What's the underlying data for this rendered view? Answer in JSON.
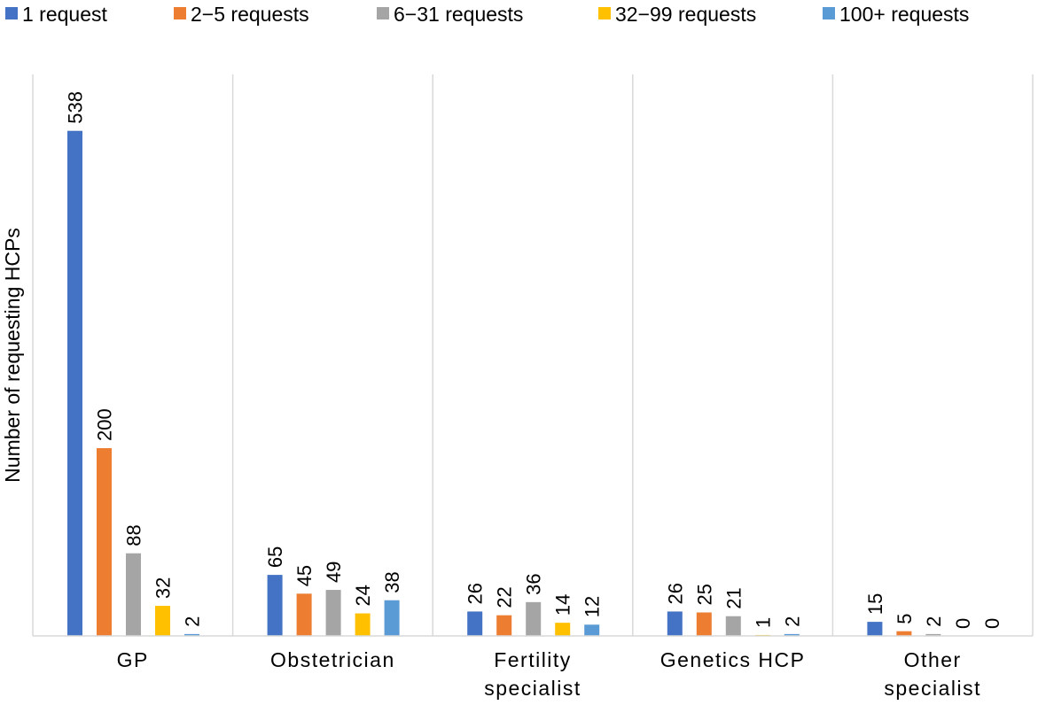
{
  "chart_data": {
    "type": "bar",
    "title": "",
    "xlabel": "",
    "ylabel": "Number of requesting HCPs",
    "categories": [
      [
        "GP"
      ],
      [
        "Obstetrician"
      ],
      [
        "Fertility",
        "specialist"
      ],
      [
        "Genetics HCP"
      ],
      [
        "Other",
        "specialist"
      ]
    ],
    "series": [
      {
        "name": "1 request",
        "color": "#4472C4",
        "values": [
          538,
          65,
          26,
          26,
          15
        ]
      },
      {
        "name": "2−5 requests",
        "color": "#ED7D31",
        "values": [
          200,
          45,
          22,
          25,
          5
        ]
      },
      {
        "name": "6−31 requests",
        "color": "#A5A5A5",
        "values": [
          88,
          49,
          36,
          21,
          2
        ]
      },
      {
        "name": "32−99 requests",
        "color": "#FFC000",
        "values": [
          32,
          24,
          14,
          1,
          0
        ]
      },
      {
        "name": "100+ requests",
        "color": "#5B9BD5",
        "values": [
          2,
          38,
          12,
          2,
          0
        ]
      }
    ],
    "ylim": [
      0,
      540
    ],
    "grid": false,
    "category_separators": true,
    "data_labels": "vertical",
    "legend": "top"
  }
}
